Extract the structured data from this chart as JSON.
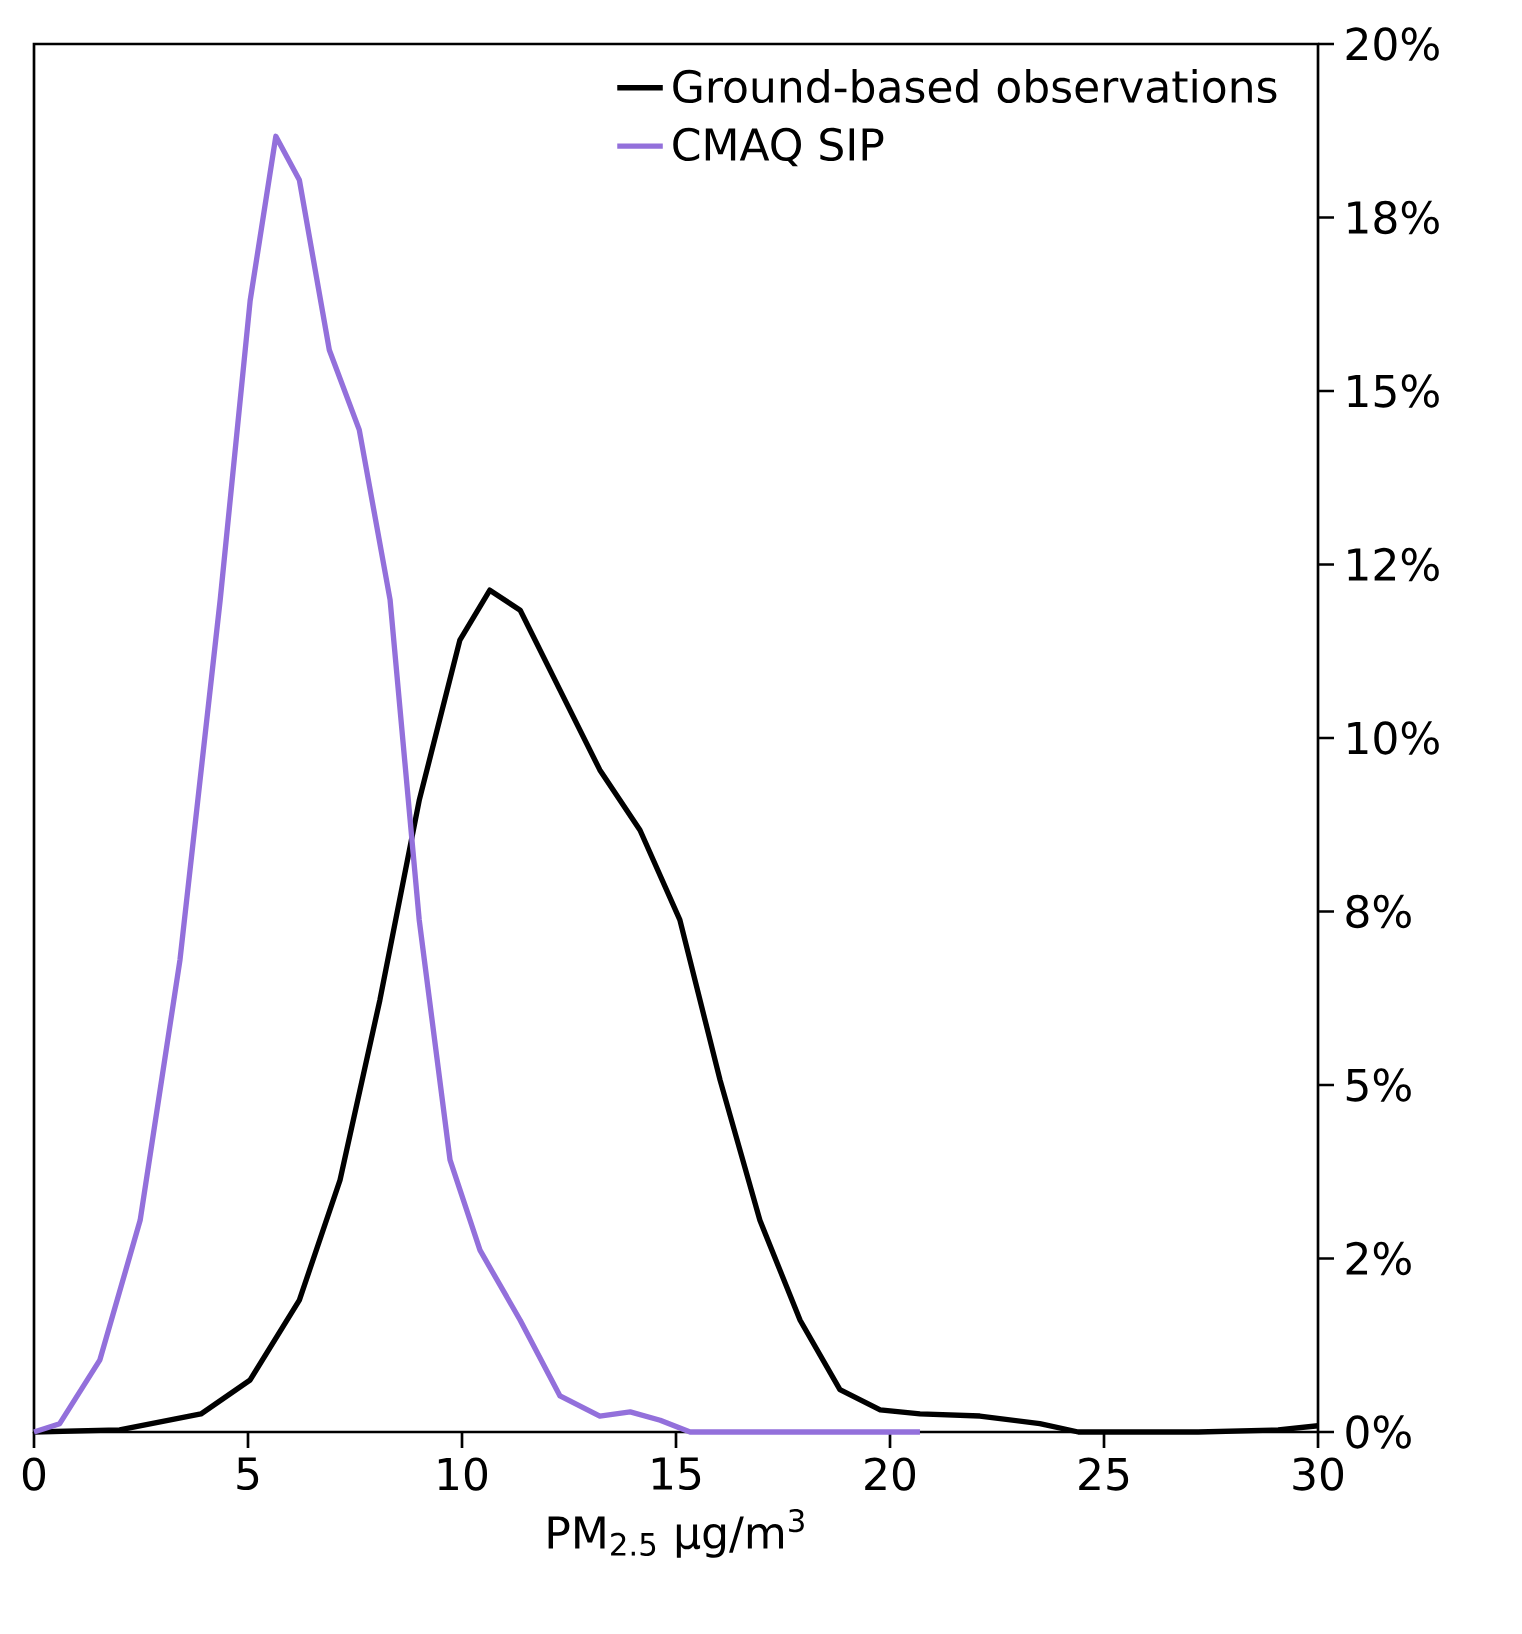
{
  "chart_data": {
    "type": "line",
    "xlabel": "PM$_{2.5}$ μg/m$^{3}$",
    "xlim": [
      0,
      30
    ],
    "xticks": [
      0,
      5,
      10,
      15,
      20,
      25,
      30
    ],
    "ylim": [
      0,
      20
    ],
    "yticks": [
      {
        "value": 0,
        "label": "0%"
      },
      {
        "value": 2.5,
        "label": "2%"
      },
      {
        "value": 5,
        "label": "5%"
      },
      {
        "value": 7.5,
        "label": "8%"
      },
      {
        "value": 10,
        "label": "10%"
      },
      {
        "value": 12.5,
        "label": "12%"
      },
      {
        "value": 15,
        "label": "15%"
      },
      {
        "value": 17.5,
        "label": "18%"
      },
      {
        "value": 20,
        "label": "20%"
      }
    ],
    "legend": "top right",
    "marker": "none",
    "line_style": "solid",
    "grid": false,
    "series": [
      {
        "name": "Ground-based observations",
        "color": "#000000",
        "x": [
          0,
          2,
          3.9,
          5.05,
          6.2,
          7.15,
          8.08,
          9.0,
          9.95,
          10.65,
          11.36,
          12.29,
          13.22,
          14.16,
          15.09,
          16.03,
          16.96,
          17.9,
          18.83,
          19.77,
          20.7,
          22.1,
          23.5,
          24.4,
          27.2,
          29.07,
          30
        ],
        "values": [
          0,
          0.03,
          0.26,
          0.75,
          1.9,
          3.63,
          6.22,
          9.1,
          11.41,
          12.13,
          11.84,
          10.69,
          9.54,
          8.67,
          7.38,
          5.07,
          3.05,
          1.61,
          0.61,
          0.32,
          0.26,
          0.23,
          0.12,
          0,
          0,
          0.03,
          0.09
        ]
      },
      {
        "name": "CMAQ SIP",
        "color": "#9370db",
        "x": [
          0,
          0.6,
          1.54,
          2.48,
          3.41,
          4.35,
          5.05,
          5.65,
          6.2,
          6.9,
          7.6,
          8.32,
          9.0,
          9.72,
          10.42,
          11.36,
          12.29,
          13.22,
          13.93,
          14.63,
          15.33,
          17.9,
          20.7
        ],
        "values": [
          0,
          0.12,
          1.04,
          3.05,
          6.8,
          11.99,
          16.3,
          18.67,
          18.04,
          15.59,
          14.44,
          11.99,
          7.38,
          3.92,
          2.62,
          1.61,
          0.52,
          0.23,
          0.29,
          0.17,
          0,
          0,
          0
        ]
      }
    ]
  }
}
